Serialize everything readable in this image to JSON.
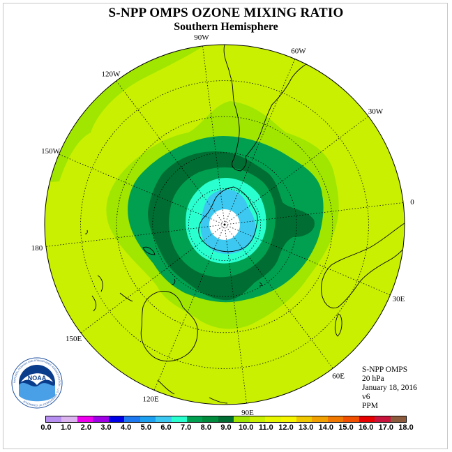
{
  "title": "S-NPP OMPS OZONE MIXING RATIO",
  "subtitle": "Southern Hemisphere",
  "longitude_labels": [
    {
      "text": "90W",
      "deg": 90
    },
    {
      "text": "60W",
      "deg": 60
    },
    {
      "text": "30W",
      "deg": 30
    },
    {
      "text": "0",
      "deg": 0
    },
    {
      "text": "30E",
      "deg": -30
    },
    {
      "text": "60E",
      "deg": -60
    },
    {
      "text": "90E",
      "deg": -90
    },
    {
      "text": "120E",
      "deg": -120
    },
    {
      "text": "150E",
      "deg": -150
    },
    {
      "text": "180",
      "deg": 180
    },
    {
      "text": "150W",
      "deg": 150
    },
    {
      "text": "120W",
      "deg": 120
    }
  ],
  "info": {
    "instrument": "S-NPP OMPS",
    "level": "20 hPa",
    "date": "January 18, 2016",
    "version": "v6",
    "units": "PPM"
  },
  "logo": {
    "text": "NOAA",
    "ring_text": "NATIONAL OCEANIC AND ATMOSPHERIC ADMINISTRATION · U.S. DEPARTMENT OF COMMERCE"
  },
  "colorbar": {
    "colors": [
      "#b78ff0",
      "#dcb4f0",
      "#ee00ee",
      "#a000e6",
      "#0000e6",
      "#1e78f0",
      "#1ea0f0",
      "#3cc8f0",
      "#2affd0",
      "#00a050",
      "#008c3c",
      "#006e32",
      "#a0e600",
      "#c8f000",
      "#e6f500",
      "#f5f500",
      "#f0c800",
      "#f0a000",
      "#f07800",
      "#f05000",
      "#e60000",
      "#c8143c",
      "#8c5a3c"
    ],
    "ticks": [
      "0.0",
      "1.0",
      "2.0",
      "3.0",
      "4.0",
      "5.0",
      "6.0",
      "7.0",
      "8.0",
      "9.0",
      "10.0",
      "11.0",
      "12.0",
      "13.0",
      "14.0",
      "15.0",
      "16.0",
      "17.0",
      "18.0"
    ]
  },
  "contour_colors": {
    "background": "#c8f000",
    "band_11": "#a0e600",
    "band_10": "#00a050",
    "band_9": "#006e32",
    "band_8": "#3cc8a0",
    "band_7": "#2affd0",
    "band_6": "#3cc8f0",
    "band_5": "#1ea0f0"
  }
}
